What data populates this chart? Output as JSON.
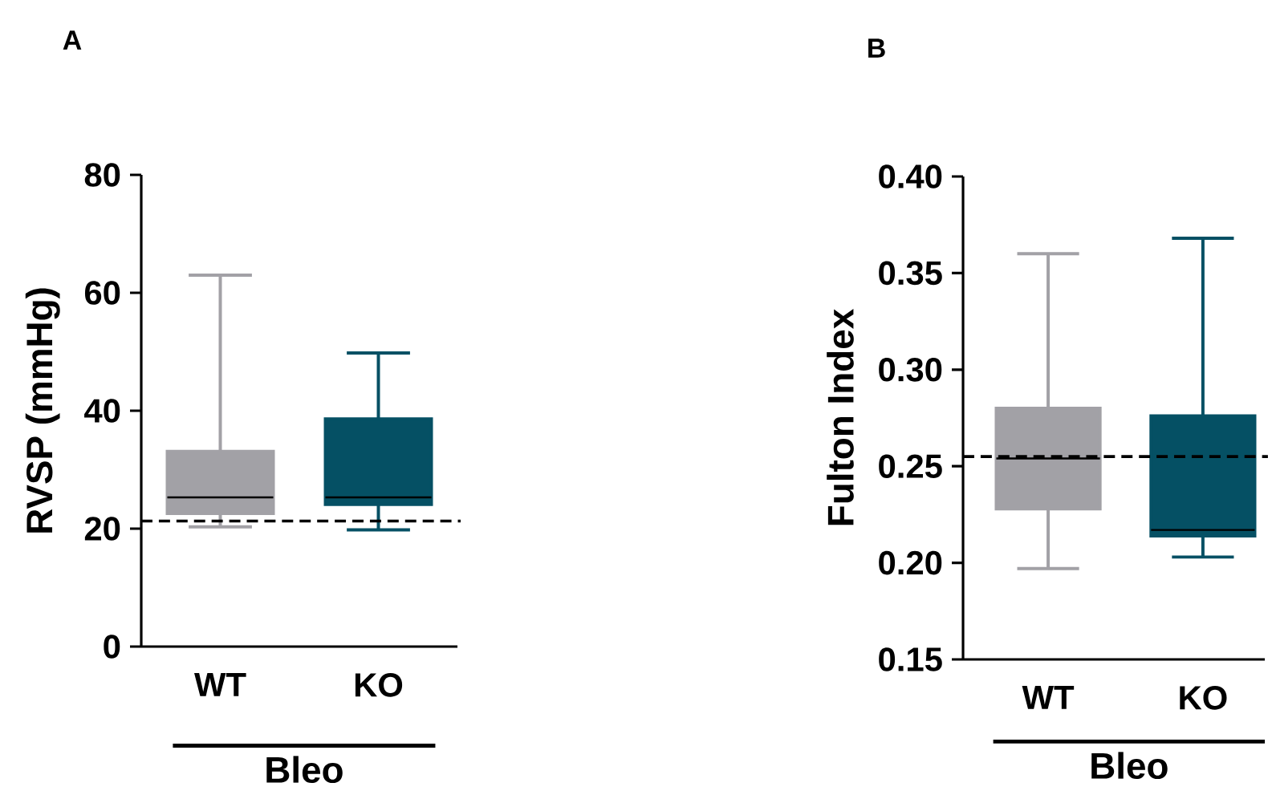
{
  "chart_data": [
    {
      "type": "box",
      "title": "A",
      "ylabel": "RVSP (mmHg)",
      "xlabel": "Bleo",
      "categories": [
        "WT",
        "KO"
      ],
      "colors": [
        "#a2a1a6",
        "#055064"
      ],
      "boxes": [
        {
          "low": 20.3,
          "q1": 22.6,
          "median": 25.3,
          "q3": 33.1,
          "high": 63
        },
        {
          "low": 19.8,
          "q1": 24.1,
          "median": 25.3,
          "q3": 38.6,
          "high": 49.8
        }
      ],
      "ylim": [
        0,
        80
      ],
      "yticks": [
        0,
        20,
        40,
        60,
        80
      ],
      "ref_lines": [
        {
          "axis": "y",
          "value": 21.3,
          "color": "#000000",
          "line_style": "dashed"
        }
      ]
    },
    {
      "type": "box",
      "title": "B",
      "ylabel": "Fulton Index",
      "xlabel": "Bleo",
      "categories": [
        "WT",
        "KO"
      ],
      "colors": [
        "#a2a1a6",
        "#055064"
      ],
      "boxes": [
        {
          "low": 0.197,
          "q1": 0.228,
          "median": 0.254,
          "q3": 0.28,
          "high": 0.36
        },
        {
          "low": 0.203,
          "q1": 0.214,
          "median": 0.217,
          "q3": 0.276,
          "high": 0.368
        }
      ],
      "ylim": [
        0.15,
        0.4
      ],
      "yticks": [
        0.15,
        {
          "value": 0.2,
          "label": "0.20"
        },
        0.25,
        {
          "value": 0.3,
          "label": "0.30"
        },
        0.35,
        {
          "value": 0.4,
          "label": "0.40"
        }
      ],
      "ref_lines": [
        {
          "axis": "y",
          "value": 0.255,
          "color": "#000000",
          "line_style": "dashed"
        }
      ]
    }
  ]
}
